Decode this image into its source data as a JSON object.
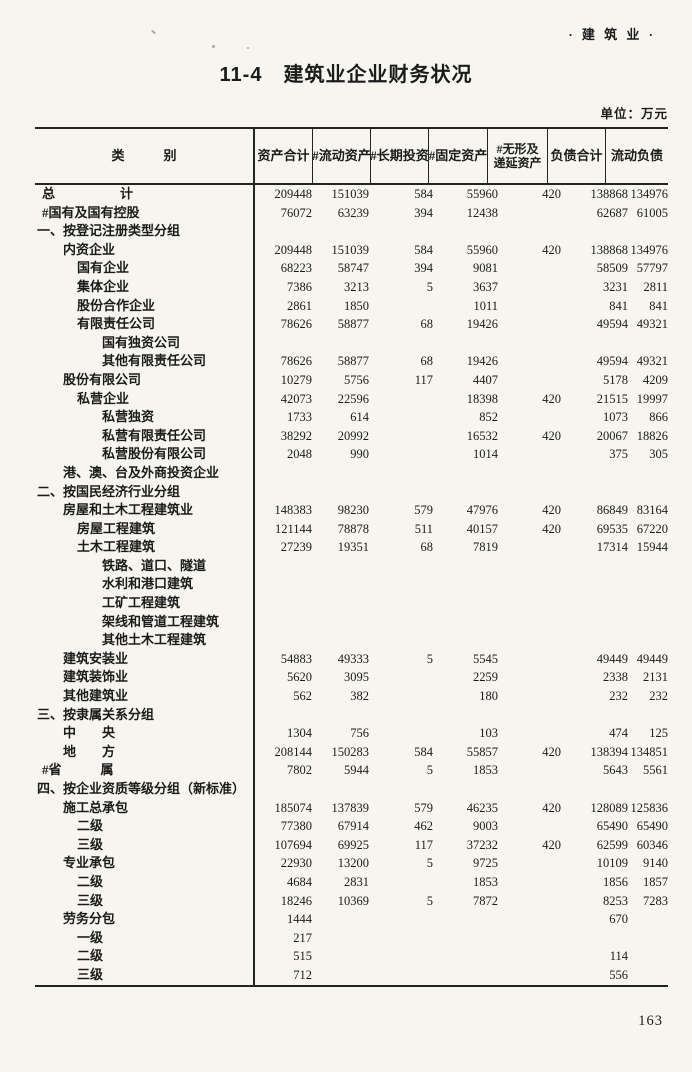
{
  "page": {
    "corner_label": "· 建 筑 业 ·",
    "title": "11-4　建筑业企业财务状况",
    "unit_note": "单位：万元",
    "page_number": "163"
  },
  "table": {
    "columns": {
      "category": "类　　　别",
      "assets_total": "资产合计",
      "current_assets": "#流动资产",
      "longterm_investment": "#长期投资",
      "fixed_assets": "#固定资产",
      "intangible_line1": "#无形及",
      "intangible_line2": "递延资产",
      "liabilities_total": "负债合计",
      "current_liabilities": "流动负债"
    },
    "rows": [
      {
        "label": "总　　　　　计",
        "indent": "top",
        "values": [
          "209448",
          "151039",
          "584",
          "55960",
          "420",
          "138868",
          "134976"
        ]
      },
      {
        "label": "#国有及国有控股",
        "indent": "top",
        "values": [
          "76072",
          "63239",
          "394",
          "12438",
          "",
          "62687",
          "61005"
        ]
      },
      {
        "label": "一、按登记注册类型分组",
        "indent": "sec",
        "values": [
          "",
          "",
          "",
          "",
          "",
          "",
          ""
        ]
      },
      {
        "label": "内资企业",
        "indent": "l1",
        "values": [
          "209448",
          "151039",
          "584",
          "55960",
          "420",
          "138868",
          "134976"
        ]
      },
      {
        "label": "国有企业",
        "indent": "l2",
        "values": [
          "68223",
          "58747",
          "394",
          "9081",
          "",
          "58509",
          "57797"
        ]
      },
      {
        "label": "集体企业",
        "indent": "l2",
        "values": [
          "7386",
          "3213",
          "5",
          "3637",
          "",
          "3231",
          "2811"
        ]
      },
      {
        "label": "股份合作企业",
        "indent": "l2",
        "values": [
          "2861",
          "1850",
          "",
          "1011",
          "",
          "841",
          "841"
        ]
      },
      {
        "label": "有限责任公司",
        "indent": "l2",
        "values": [
          "78626",
          "58877",
          "68",
          "19426",
          "",
          "49594",
          "49321"
        ]
      },
      {
        "label": "国有独资公司",
        "indent": "l3",
        "values": [
          "",
          "",
          "",
          "",
          "",
          "",
          ""
        ]
      },
      {
        "label": "其他有限责任公司",
        "indent": "l3",
        "values": [
          "78626",
          "58877",
          "68",
          "19426",
          "",
          "49594",
          "49321"
        ]
      },
      {
        "label": "股份有限公司",
        "indent": "l1",
        "values": [
          "10279",
          "5756",
          "117",
          "4407",
          "",
          "5178",
          "4209"
        ]
      },
      {
        "label": "私营企业",
        "indent": "l2",
        "values": [
          "42073",
          "22596",
          "",
          "18398",
          "420",
          "21515",
          "19997"
        ]
      },
      {
        "label": "私营独资",
        "indent": "l3",
        "values": [
          "1733",
          "614",
          "",
          "852",
          "",
          "1073",
          "866"
        ]
      },
      {
        "label": "私营有限责任公司",
        "indent": "l3",
        "values": [
          "38292",
          "20992",
          "",
          "16532",
          "420",
          "20067",
          "18826"
        ]
      },
      {
        "label": "私营股份有限公司",
        "indent": "l3",
        "values": [
          "2048",
          "990",
          "",
          "1014",
          "",
          "375",
          "305"
        ]
      },
      {
        "label": "港、澳、台及外商投资企业",
        "indent": "l1",
        "values": [
          "",
          "",
          "",
          "",
          "",
          "",
          ""
        ]
      },
      {
        "label": "二、按国民经济行业分组",
        "indent": "sec",
        "values": [
          "",
          "",
          "",
          "",
          "",
          "",
          ""
        ]
      },
      {
        "label": "房屋和土木工程建筑业",
        "indent": "l1",
        "values": [
          "148383",
          "98230",
          "579",
          "47976",
          "420",
          "86849",
          "83164"
        ]
      },
      {
        "label": "房屋工程建筑",
        "indent": "l2",
        "values": [
          "121144",
          "78878",
          "511",
          "40157",
          "420",
          "69535",
          "67220"
        ]
      },
      {
        "label": "土木工程建筑",
        "indent": "l2",
        "values": [
          "27239",
          "19351",
          "68",
          "7819",
          "",
          "17314",
          "15944"
        ]
      },
      {
        "label": "铁路、道口、隧道",
        "indent": "l3",
        "values": [
          "",
          "",
          "",
          "",
          "",
          "",
          ""
        ]
      },
      {
        "label": "水利和港口建筑",
        "indent": "l3",
        "values": [
          "",
          "",
          "",
          "",
          "",
          "",
          ""
        ]
      },
      {
        "label": "工矿工程建筑",
        "indent": "l3",
        "values": [
          "",
          "",
          "",
          "",
          "",
          "",
          ""
        ]
      },
      {
        "label": "架线和管道工程建筑",
        "indent": "l3",
        "values": [
          "",
          "",
          "",
          "",
          "",
          "",
          ""
        ]
      },
      {
        "label": "其他土木工程建筑",
        "indent": "l3",
        "values": [
          "",
          "",
          "",
          "",
          "",
          "",
          ""
        ]
      },
      {
        "label": "建筑安装业",
        "indent": "l1",
        "values": [
          "54883",
          "49333",
          "5",
          "5545",
          "",
          "49449",
          "49449"
        ]
      },
      {
        "label": "建筑装饰业",
        "indent": "l1",
        "values": [
          "5620",
          "3095",
          "",
          "2259",
          "",
          "2338",
          "2131"
        ]
      },
      {
        "label": "其他建筑业",
        "indent": "l1",
        "values": [
          "562",
          "382",
          "",
          "180",
          "",
          "232",
          "232"
        ]
      },
      {
        "label": "三、按隶属关系分组",
        "indent": "sec",
        "values": [
          "",
          "",
          "",
          "",
          "",
          "",
          ""
        ]
      },
      {
        "label": "中　　央",
        "indent": "l1",
        "values": [
          "1304",
          "756",
          "",
          "103",
          "",
          "474",
          "125"
        ]
      },
      {
        "label": "地　　方",
        "indent": "l1",
        "values": [
          "208144",
          "150283",
          "584",
          "55857",
          "420",
          "138394",
          "134851"
        ]
      },
      {
        "label": "#省　　　属",
        "indent": "top",
        "values": [
          "7802",
          "5944",
          "5",
          "1853",
          "",
          "5643",
          "5561"
        ]
      },
      {
        "label": "四、按企业资质等级分组（新标准）",
        "indent": "sec",
        "values": [
          "",
          "",
          "",
          "",
          "",
          "",
          ""
        ]
      },
      {
        "label": "施工总承包",
        "indent": "l1",
        "values": [
          "185074",
          "137839",
          "579",
          "46235",
          "420",
          "128089",
          "125836"
        ]
      },
      {
        "label": "二级",
        "indent": "l2",
        "values": [
          "77380",
          "67914",
          "462",
          "9003",
          "",
          "65490",
          "65490"
        ]
      },
      {
        "label": "三级",
        "indent": "l2",
        "values": [
          "107694",
          "69925",
          "117",
          "37232",
          "420",
          "62599",
          "60346"
        ]
      },
      {
        "label": "专业承包",
        "indent": "l1",
        "values": [
          "22930",
          "13200",
          "5",
          "9725",
          "",
          "10109",
          "9140"
        ]
      },
      {
        "label": "二级",
        "indent": "l2",
        "values": [
          "4684",
          "2831",
          "",
          "1853",
          "",
          "1856",
          "1857"
        ]
      },
      {
        "label": "三级",
        "indent": "l2",
        "values": [
          "18246",
          "10369",
          "5",
          "7872",
          "",
          "8253",
          "7283"
        ]
      },
      {
        "label": "劳务分包",
        "indent": "l1",
        "values": [
          "1444",
          "",
          "",
          "",
          "",
          "670",
          ""
        ]
      },
      {
        "label": "一级",
        "indent": "l2",
        "values": [
          "217",
          "",
          "",
          "",
          "",
          "",
          ""
        ]
      },
      {
        "label": "二级",
        "indent": "l2",
        "values": [
          "515",
          "",
          "",
          "",
          "",
          "114",
          ""
        ]
      },
      {
        "label": "三级",
        "indent": "l2",
        "values": [
          "712",
          "",
          "",
          "",
          "",
          "556",
          ""
        ]
      }
    ]
  }
}
